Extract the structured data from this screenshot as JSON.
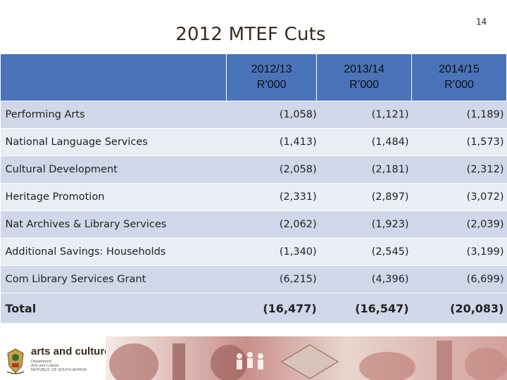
{
  "slide": {
    "page_number": "14",
    "title": "2012 MTEF Cuts"
  },
  "table": {
    "columns": [
      {
        "year": "2012/13",
        "unit": "R’000"
      },
      {
        "year": "2013/14",
        "unit": "R’000"
      },
      {
        "year": "2014/15",
        "unit": "R’000"
      }
    ],
    "rows": [
      {
        "label": "Performing Arts",
        "values": [
          "(1,058)",
          "(1,121)",
          "(1,189)"
        ]
      },
      {
        "label": "National Language Services",
        "values": [
          "(1,413)",
          "(1,484)",
          "(1,573)"
        ]
      },
      {
        "label": "Cultural Development",
        "values": [
          "(2,058)",
          "(2,181)",
          "(2,312)"
        ]
      },
      {
        "label": "Heritage Promotion",
        "values": [
          "(2,331)",
          "(2,897)",
          "(3,072)"
        ]
      },
      {
        "label": "Nat Archives & Library Services",
        "values": [
          "(2,062)",
          "(1,923)",
          "(2,039)"
        ]
      },
      {
        "label": "Additional Savings: Households",
        "values": [
          "(1,340)",
          "(2,545)",
          "(3,199)"
        ]
      },
      {
        "label": "Com Library Services Grant",
        "values": [
          "(6,215)",
          "(4,396)",
          "(6,699)"
        ]
      }
    ],
    "total": {
      "label": "Total",
      "values": [
        "(16,477)",
        "(16,547)",
        "(20,083)"
      ]
    }
  },
  "footer": {
    "brand": "arts and culture",
    "brand_sub_lines": [
      "Department:",
      "Arts and Culture",
      "REPUBLIC OF SOUTH AFRICA"
    ],
    "crest_icon": "coat-of-arms-icon",
    "colors": {
      "header_blue": "#4a73ba",
      "row_dark": "#d0d7e8",
      "row_light": "#e9edf4",
      "title_brown": "#3b2b1e"
    }
  }
}
